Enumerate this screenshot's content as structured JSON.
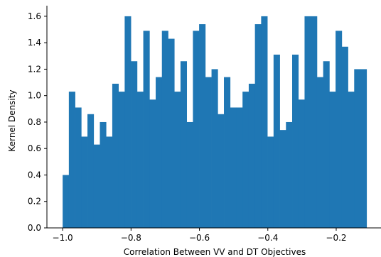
{
  "chart_data": {
    "type": "bar",
    "subtype": "histogram",
    "title": "",
    "xlabel": "Correlation Between VV and DT Objectives",
    "ylabel": "Kernel Density",
    "xlim": [
      -1.046,
      -0.069
    ],
    "ylim": [
      0.0,
      1.68
    ],
    "grid": false,
    "legend": "none",
    "bar_color": "#1f77b4",
    "bin_start": -1.0,
    "bin_width": 0.01814,
    "values": [
      0.4,
      1.03,
      0.91,
      0.69,
      0.86,
      0.63,
      0.8,
      0.69,
      1.09,
      1.03,
      1.6,
      1.26,
      1.03,
      1.49,
      0.97,
      1.14,
      1.49,
      1.43,
      1.03,
      1.26,
      0.8,
      1.49,
      1.54,
      1.14,
      1.2,
      0.86,
      1.14,
      0.91,
      0.91,
      1.03,
      1.09,
      1.54,
      1.6,
      0.69,
      1.31,
      0.74,
      0.8,
      1.31,
      0.97,
      1.6,
      1.6,
      1.14,
      1.26,
      1.03,
      1.49,
      1.37,
      1.03,
      1.2,
      1.2
    ],
    "xticks": [
      -1.0,
      -0.8,
      -0.6,
      -0.4,
      -0.2
    ],
    "xtick_labels": [
      "−1.0",
      "−0.8",
      "−0.6",
      "−0.4",
      "−0.2"
    ],
    "yticks": [
      0.0,
      0.2,
      0.4,
      0.6,
      0.8,
      1.0,
      1.2,
      1.4,
      1.6
    ],
    "ytick_labels": [
      "0.0",
      "0.2",
      "0.4",
      "0.6",
      "0.8",
      "1.0",
      "1.2",
      "1.4",
      "1.6"
    ]
  }
}
